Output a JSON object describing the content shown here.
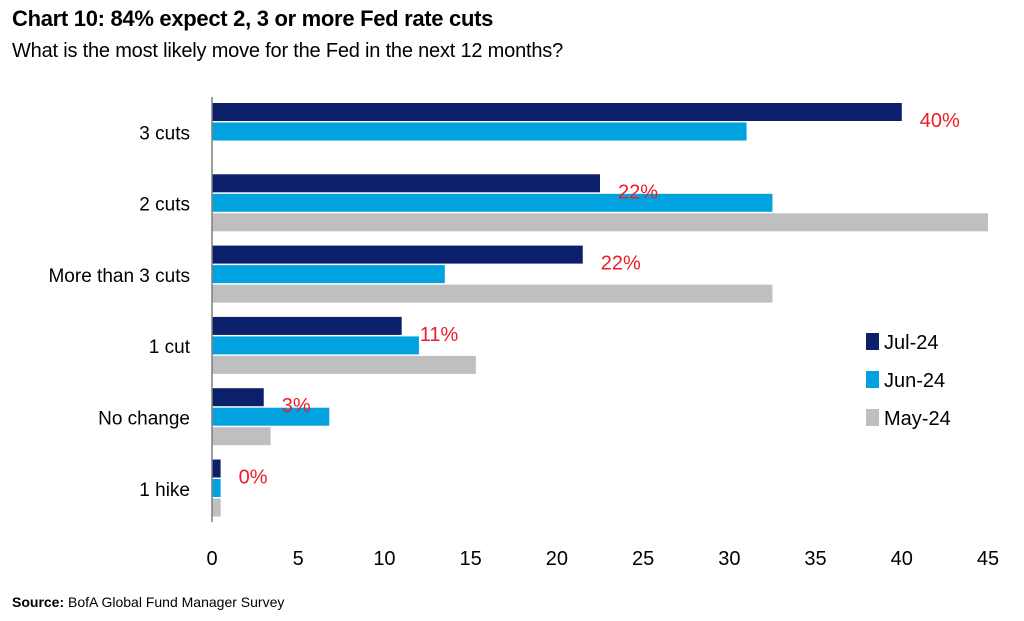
{
  "header": {
    "title": "Chart 10: 84% expect 2, 3 or more Fed rate cuts",
    "subtitle": "What is the most likely move for the Fed in the next 12 months?"
  },
  "footer": {
    "source_label": "Source:",
    "source_text": "BofA Global Fund Manager Survey"
  },
  "chart_data": {
    "type": "bar",
    "orientation": "horizontal",
    "title": "Chart 10: 84% expect 2, 3 or more Fed rate cuts",
    "subtitle": "What is the most likely move for the Fed in the next 12 months?",
    "categories": [
      "3 cuts",
      "2 cuts",
      "More than 3 cuts",
      "1 cut",
      "No change",
      "1 hike"
    ],
    "series": [
      {
        "name": "Jul-24",
        "color": "#0b1f6b",
        "values": [
          40,
          22.5,
          21.5,
          11,
          3,
          0.5
        ]
      },
      {
        "name": "Jun-24",
        "color": "#00a3e0",
        "values": [
          31,
          32.5,
          13.5,
          12,
          6.8,
          0.5
        ]
      },
      {
        "name": "May-24",
        "color": "#bfbfbf",
        "values": [
          0,
          45,
          32.5,
          15.3,
          3.4,
          0.5
        ]
      }
    ],
    "data_labels": [
      "40%",
      "22%",
      "22%",
      "11%",
      "3%",
      "0%"
    ],
    "data_label_color": "#ee1c25",
    "xlim": [
      0,
      45
    ],
    "xticks": [
      0,
      5,
      10,
      15,
      20,
      25,
      30,
      35,
      40,
      45
    ],
    "grid": false,
    "legend": "right"
  }
}
